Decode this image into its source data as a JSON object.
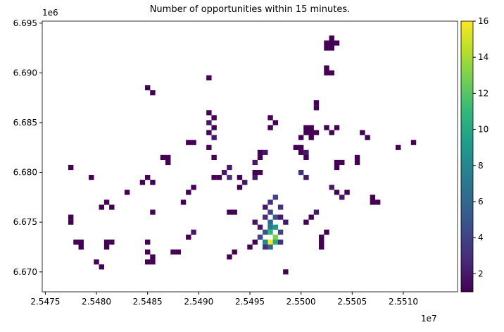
{
  "chart_data": {
    "type": "heatmap",
    "title": "Number of opportunities within 15 minutes.",
    "x_offset_label": "1e7",
    "y_offset_label": "1e6",
    "xlim": [
      25474700,
      25515300
    ],
    "ylim": [
      6668000,
      6695200
    ],
    "xticks": [
      {
        "value": 25475000,
        "label": "2.5475"
      },
      {
        "value": 25480000,
        "label": "2.5480"
      },
      {
        "value": 25485000,
        "label": "2.5485"
      },
      {
        "value": 25490000,
        "label": "2.5490"
      },
      {
        "value": 25495000,
        "label": "2.5495"
      },
      {
        "value": 25500000,
        "label": "2.5500"
      },
      {
        "value": 25505000,
        "label": "2.5505"
      },
      {
        "value": 25510000,
        "label": "2.5510"
      }
    ],
    "yticks": [
      {
        "value": 6670000,
        "label": "6.670"
      },
      {
        "value": 6675000,
        "label": "6.675"
      },
      {
        "value": 6680000,
        "label": "6.680"
      },
      {
        "value": 6685000,
        "label": "6.685"
      },
      {
        "value": 6690000,
        "label": "6.690"
      },
      {
        "value": 6695000,
        "label": "6.695"
      }
    ],
    "clim": [
      1,
      16
    ],
    "cticks": [
      2,
      4,
      6,
      8,
      10,
      12,
      14,
      16
    ],
    "colormap": [
      "#440154",
      "#482878",
      "#3e4989",
      "#31688e",
      "#26828e",
      "#1f9e89",
      "#35b779",
      "#6ece58",
      "#b5de2b",
      "#fde725"
    ],
    "cells": [
      [
        25502500,
        6693000,
        1
      ],
      [
        25503000,
        6693000,
        1
      ],
      [
        25503500,
        6693000,
        1
      ],
      [
        25503000,
        6692500,
        1
      ],
      [
        25503000,
        6693500,
        1
      ],
      [
        25502500,
        6692500,
        1
      ],
      [
        25502500,
        6690000,
        1
      ],
      [
        25502500,
        6690500,
        1
      ],
      [
        25503000,
        6690000,
        1
      ],
      [
        25491000,
        6689500,
        1
      ],
      [
        25485500,
        6688000,
        1
      ],
      [
        25485000,
        6688500,
        1
      ],
      [
        25501500,
        6687000,
        1
      ],
      [
        25501500,
        6686500,
        1
      ],
      [
        25491000,
        6686000,
        1
      ],
      [
        25491500,
        6685500,
        1
      ],
      [
        25491000,
        6685000,
        2
      ],
      [
        25491500,
        6684500,
        1
      ],
      [
        25491000,
        6684000,
        1
      ],
      [
        25491500,
        6683500,
        2
      ],
      [
        25491000,
        6682500,
        1
      ],
      [
        25491500,
        6681500,
        1
      ],
      [
        25497000,
        6685500,
        1
      ],
      [
        25497500,
        6685000,
        1
      ],
      [
        25497000,
        6684500,
        1
      ],
      [
        25500500,
        6684500,
        1
      ],
      [
        25501000,
        6684500,
        1
      ],
      [
        25501500,
        6684000,
        1
      ],
      [
        25500500,
        6684000,
        1
      ],
      [
        25501000,
        6683500,
        1
      ],
      [
        25501000,
        6684000,
        1
      ],
      [
        25500000,
        6683500,
        1
      ],
      [
        25503000,
        6684000,
        1
      ],
      [
        25503500,
        6684500,
        1
      ],
      [
        25502500,
        6684500,
        1
      ],
      [
        25506000,
        6684000,
        1
      ],
      [
        25506500,
        6683500,
        1
      ],
      [
        25511000,
        6683000,
        1
      ],
      [
        25509500,
        6682500,
        1
      ],
      [
        25487000,
        6681500,
        1
      ],
      [
        25487000,
        6681000,
        1
      ],
      [
        25486500,
        6681500,
        1
      ],
      [
        25489000,
        6683000,
        1
      ],
      [
        25489500,
        6683000,
        1
      ],
      [
        25499500,
        6682500,
        1
      ],
      [
        25500000,
        6682500,
        1
      ],
      [
        25500500,
        6682000,
        2
      ],
      [
        25500000,
        6682000,
        1
      ],
      [
        25500500,
        6681500,
        1
      ],
      [
        25496000,
        6682000,
        1
      ],
      [
        25496500,
        6682000,
        2
      ],
      [
        25496000,
        6681500,
        1
      ],
      [
        25495500,
        6681000,
        2
      ],
      [
        25503500,
        6680500,
        1
      ],
      [
        25504000,
        6681000,
        1
      ],
      [
        25503500,
        6681000,
        1
      ],
      [
        25505500,
        6681500,
        1
      ],
      [
        25505500,
        6681000,
        1
      ],
      [
        25492500,
        6680000,
        2
      ],
      [
        25493000,
        6680500,
        2
      ],
      [
        25492000,
        6679500,
        1
      ],
      [
        25493000,
        6679500,
        3
      ],
      [
        25494000,
        6679500,
        1
      ],
      [
        25494500,
        6679000,
        2
      ],
      [
        25494000,
        6678500,
        1
      ],
      [
        25495500,
        6680000,
        1
      ],
      [
        25496000,
        6680000,
        1
      ],
      [
        25495500,
        6679500,
        2
      ],
      [
        25477500,
        6680500,
        1
      ],
      [
        25479500,
        6679500,
        1
      ],
      [
        25481000,
        6677000,
        1
      ],
      [
        25481500,
        6676500,
        1
      ],
      [
        25480500,
        6676500,
        1
      ],
      [
        25485000,
        6679500,
        1
      ],
      [
        25485500,
        6679000,
        1
      ],
      [
        25484500,
        6679000,
        1
      ],
      [
        25489000,
        6678000,
        1
      ],
      [
        25489500,
        6678500,
        1
      ],
      [
        25488500,
        6677000,
        1
      ],
      [
        25491500,
        6679500,
        1
      ],
      [
        25507000,
        6677000,
        1
      ],
      [
        25507500,
        6677000,
        1
      ],
      [
        25507000,
        6677500,
        1
      ],
      [
        25503000,
        6678500,
        2
      ],
      [
        25503500,
        6678000,
        1
      ],
      [
        25504500,
        6678000,
        1
      ],
      [
        25504000,
        6677500,
        2
      ],
      [
        25497000,
        6677000,
        3
      ],
      [
        25497500,
        6677500,
        4
      ],
      [
        25498000,
        6676500,
        3
      ],
      [
        25496500,
        6676500,
        2
      ],
      [
        25497000,
        6676000,
        4
      ],
      [
        25497500,
        6675500,
        5
      ],
      [
        25497000,
        6675000,
        6
      ],
      [
        25496500,
        6675500,
        3
      ],
      [
        25498000,
        6675500,
        2
      ],
      [
        25497000,
        6674500,
        7
      ],
      [
        25497500,
        6674500,
        9
      ],
      [
        25496500,
        6674000,
        5
      ],
      [
        25497000,
        6674000,
        11
      ],
      [
        25497000,
        6673000,
        16
      ],
      [
        25497500,
        6673500,
        13
      ],
      [
        25496500,
        6673000,
        8
      ],
      [
        25497500,
        6673000,
        10
      ],
      [
        25496000,
        6673500,
        4
      ],
      [
        25497000,
        6672500,
        6
      ],
      [
        25496500,
        6672500,
        3
      ],
      [
        25498000,
        6674000,
        4
      ],
      [
        25498000,
        6673000,
        3
      ],
      [
        25496000,
        6674500,
        2
      ],
      [
        25495500,
        6675000,
        2
      ],
      [
        25495500,
        6673000,
        1
      ],
      [
        25477500,
        6675000,
        1
      ],
      [
        25477500,
        6675500,
        1
      ],
      [
        25478500,
        6672500,
        1
      ],
      [
        25478000,
        6673000,
        1
      ],
      [
        25478500,
        6673000,
        1
      ],
      [
        25481000,
        6672500,
        1
      ],
      [
        25481500,
        6673000,
        1
      ],
      [
        25481000,
        6673000,
        1
      ],
      [
        25480500,
        6670500,
        1
      ],
      [
        25480000,
        6671000,
        1
      ],
      [
        25485500,
        6671500,
        1
      ],
      [
        25485000,
        6671000,
        1
      ],
      [
        25485500,
        6671000,
        1
      ],
      [
        25485000,
        6672000,
        1
      ],
      [
        25485000,
        6673000,
        1
      ],
      [
        25487500,
        6672000,
        1
      ],
      [
        25488000,
        6672000,
        1
      ],
      [
        25489500,
        6674000,
        2
      ],
      [
        25489000,
        6673500,
        1
      ],
      [
        25493000,
        6671500,
        1
      ],
      [
        25493500,
        6672000,
        1
      ],
      [
        25495000,
        6672500,
        1
      ],
      [
        25501000,
        6675500,
        1
      ],
      [
        25500500,
        6675000,
        1
      ],
      [
        25501500,
        6676000,
        2
      ],
      [
        25502500,
        6674000,
        1
      ],
      [
        25502000,
        6673500,
        1
      ],
      [
        25502000,
        6673000,
        1
      ],
      [
        25502000,
        6672500,
        1
      ],
      [
        25498500,
        6670000,
        1
      ],
      [
        25493000,
        6676000,
        1
      ],
      [
        25493500,
        6676000,
        1
      ],
      [
        25485500,
        6676000,
        1
      ],
      [
        25483000,
        6678000,
        1
      ],
      [
        25498500,
        6675000,
        2
      ],
      [
        25500000,
        6680000,
        3
      ],
      [
        25500500,
        6679500,
        2
      ]
    ]
  }
}
